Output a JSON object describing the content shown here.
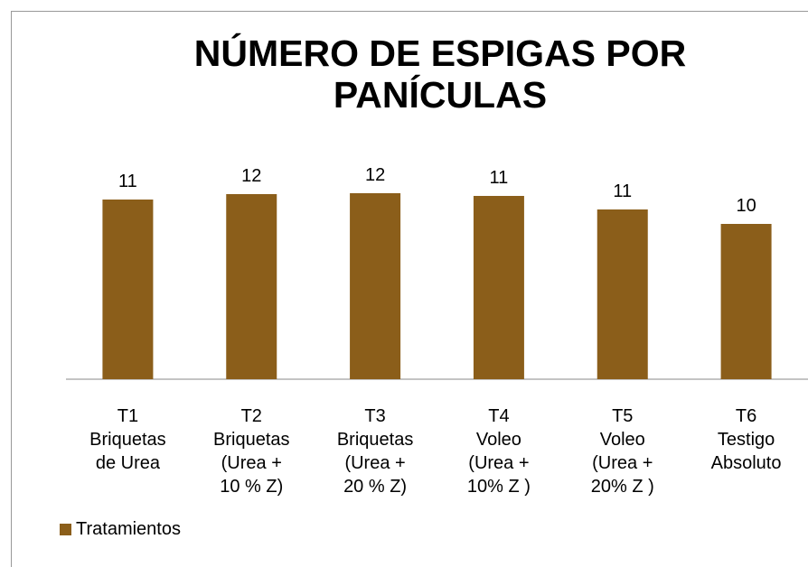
{
  "chart_data": {
    "type": "bar",
    "title": "NÚMERO DE ESPIGAS POR\nPANÍCULAS",
    "categories": [
      "T1\nBriquetas\nde Urea",
      "T2\nBriquetas\n(Urea +\n10 % Z)",
      "T3\nBriquetas\n(Urea +\n20 % Z)",
      "T4\nVoleo\n(Urea +\n10% Z )",
      "T5\nVoleo\n(Urea +\n20% Z )",
      "T6\nTestigo\nAbsoluto"
    ],
    "series": [
      {
        "name": "Tratamientos",
        "color": "#8b5e1a",
        "values": [
          11.25,
          11.55,
          11.6,
          11.45,
          10.7,
          9.9
        ],
        "value_labels": [
          "11",
          "12",
          "12",
          "11",
          "11",
          "10"
        ]
      }
    ],
    "ylim": [
      1.3,
      16
    ],
    "legend": "bottom-left"
  }
}
